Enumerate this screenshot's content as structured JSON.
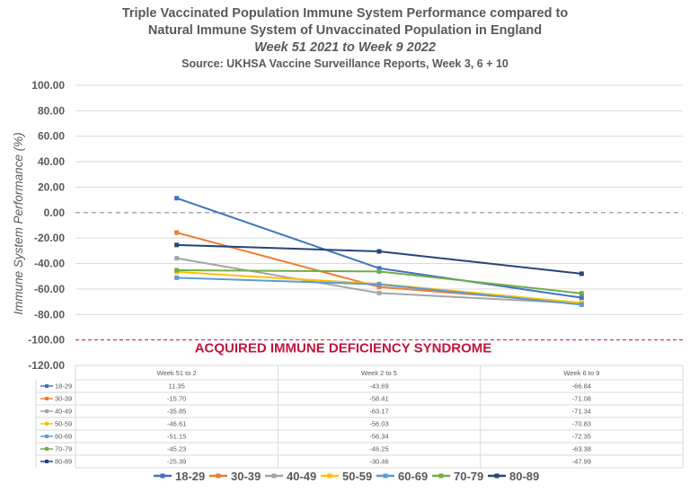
{
  "chart_data": {
    "type": "line",
    "title": [
      "Triple Vaccinated Population Immune System Performance compared to",
      "Natural Immune System of Unvaccinated Population in England"
    ],
    "subtitle": "Week 51 2021 to Week 9 2022",
    "source": "Source: UKHSA Vaccine Surveillance Reports, Week 3, 6 + 10",
    "ylabel": "Immune System Performance (%)",
    "xlabel": "",
    "ylim": [
      -120,
      100
    ],
    "ytick_step": 20,
    "ytick_labels": [
      "100.00",
      "80.00",
      "60.00",
      "40.00",
      "20.00",
      "0.00",
      "-20.00",
      "-40.00",
      "-60.00",
      "-80.00",
      "-100.00",
      "-120.00"
    ],
    "categories": [
      "Week 51 to 2",
      "Week 2 to 5",
      "Week 6 to 9"
    ],
    "reference_lines": [
      {
        "value": 0,
        "style": "dashed",
        "color": "#7f7f7f"
      },
      {
        "value": -100,
        "style": "dashed",
        "color": "#c0143c",
        "label": "ACQUIRED IMMUNE DEFICIENCY SYNDROME"
      }
    ],
    "legend_position": "bottom",
    "series": [
      {
        "name": "18-29",
        "color": "#4472c4",
        "values": [
          11.35,
          -43.69,
          -66.84
        ],
        "labels": [
          "11.35",
          "-43.69",
          "-66.84"
        ]
      },
      {
        "name": "30-39",
        "color": "#ed7d31",
        "values": [
          -15.7,
          -58.41,
          -71.08
        ],
        "labels": [
          "-15.70",
          "-58.41",
          "-71.08"
        ]
      },
      {
        "name": "40-49",
        "color": "#a5a5a5",
        "values": [
          -35.85,
          -63.17,
          -71.34
        ],
        "labels": [
          "-35.85",
          "-63.17",
          "-71.34"
        ]
      },
      {
        "name": "50-59",
        "color": "#ffc000",
        "values": [
          -46.61,
          -56.03,
          -70.83
        ],
        "labels": [
          "-46.61",
          "-56.03",
          "-70.83"
        ]
      },
      {
        "name": "60-69",
        "color": "#5b9bd5",
        "values": [
          -51.15,
          -56.34,
          -72.35
        ],
        "labels": [
          "-51.15",
          "-56.34",
          "-72.35"
        ]
      },
      {
        "name": "70-79",
        "color": "#70ad47",
        "values": [
          -45.23,
          -46.25,
          -63.38
        ],
        "labels": [
          "-45.23",
          "-46.25",
          "-63.38"
        ]
      },
      {
        "name": "80-89",
        "color": "#264478",
        "values": [
          -25.39,
          -30.46,
          -47.99
        ],
        "labels": [
          "-25.39",
          "-30.46",
          "-47.99"
        ]
      }
    ]
  }
}
